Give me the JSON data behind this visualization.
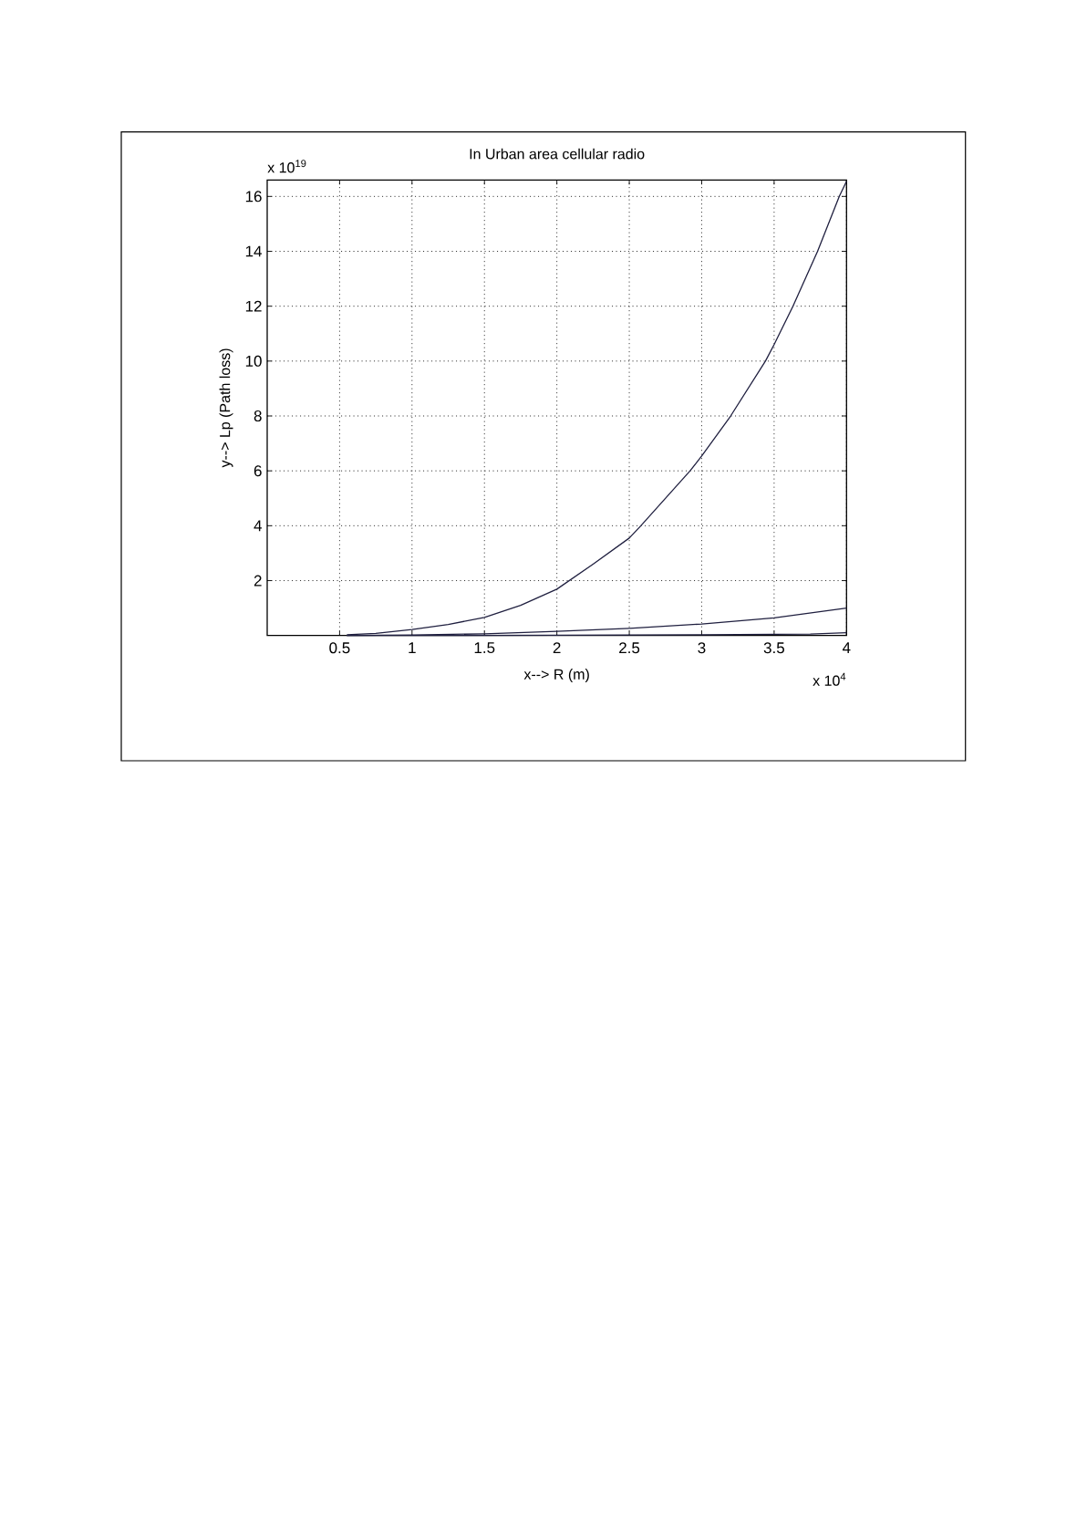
{
  "chart_data": {
    "type": "line",
    "title": "In Urban area cellular radio",
    "xlabel": "x--> R (m)",
    "ylabel": "y--> Lp (Path loss)",
    "annotations": [
      "x 10$^{19}$",
      "x 10$^{4}$"
    ],
    "series": [
      {
        "color": "#1f1f3f",
        "x": [
          0.55,
          0.75,
          1,
          1.25,
          1.5,
          1.75,
          2,
          2.25,
          2.5,
          2.58,
          2.92,
          3,
          3.2,
          3.44,
          3.5,
          3.63,
          3.8,
          3.95,
          4
        ],
        "values": [
          0.03,
          0.08,
          0.22,
          0.4,
          0.66,
          1.1,
          1.69,
          2.6,
          3.55,
          4,
          6,
          6.54,
          8,
          10,
          10.6,
          12,
          14,
          16,
          16.55
        ]
      },
      {
        "color": "#1f1f3f",
        "x": [
          0.55,
          1,
          1.5,
          2,
          2.5,
          3,
          3.5,
          4
        ],
        "values": [
          0,
          0.02,
          0.06,
          0.15,
          0.26,
          0.42,
          0.64,
          1.0
        ]
      },
      {
        "color": "#1f1f3f",
        "x": [
          0.55,
          1,
          2,
          3,
          3.75,
          4
        ],
        "values": [
          0,
          0,
          0.01,
          0.03,
          0.05,
          0.1
        ]
      }
    ],
    "xlim": [
      0,
      4
    ],
    "ylim": [
      0,
      16.6
    ],
    "xticks": [
      0.5,
      1,
      1.5,
      2,
      2.5,
      3,
      3.5,
      4
    ],
    "yticks": [
      2,
      4,
      6,
      8,
      10,
      12,
      14,
      16
    ],
    "grid": true,
    "marker": "none",
    "line_style": "solid"
  }
}
